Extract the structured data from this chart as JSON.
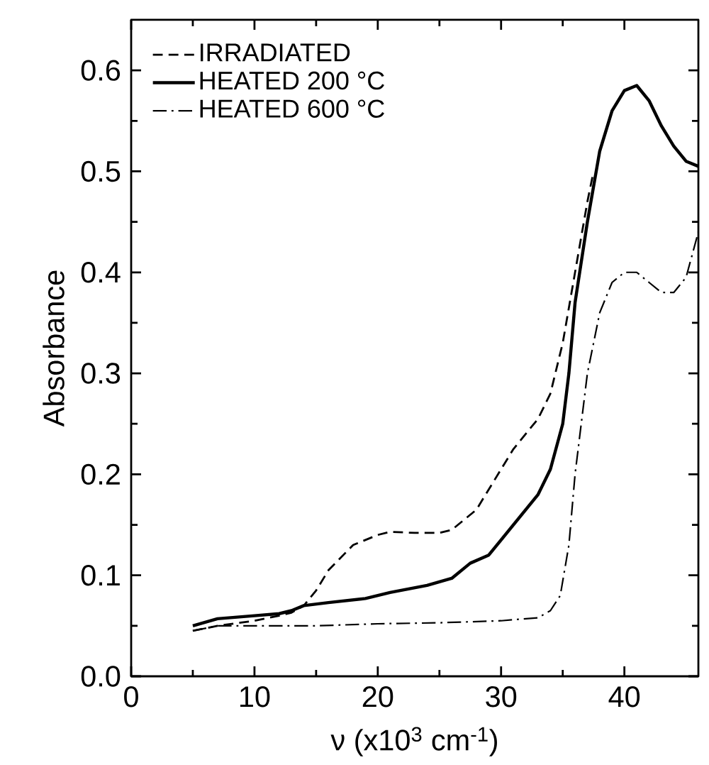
{
  "chart_data": {
    "type": "line",
    "xlabel": "ν (x10$^{3}$ cm$^{-1}$)",
    "ylabel": "Absorbance",
    "xlim": [
      0,
      46
    ],
    "ylim": [
      0,
      0.65
    ],
    "xticks": [
      0,
      10,
      20,
      30,
      40
    ],
    "yticks": [
      {
        "value": 0,
        "label": "0.0"
      },
      {
        "value": 0.1,
        "label": "0.1"
      },
      {
        "value": 0.2,
        "label": "0.2"
      },
      {
        "value": 0.3,
        "label": "0.3"
      },
      {
        "value": 0.4,
        "label": "0.4"
      },
      {
        "value": 0.5,
        "label": "0.5"
      },
      {
        "value": 0.6,
        "label": "0.6"
      }
    ],
    "grid": false,
    "legend": "top left",
    "marker": "none",
    "series": [
      {
        "name": "IRRADIATED",
        "color": "#000000",
        "line_style": "dashed",
        "x": [
          5,
          7,
          10,
          12,
          13,
          14,
          15,
          16,
          18,
          20,
          21,
          23,
          25,
          26,
          28,
          30,
          31,
          33,
          34,
          35,
          36,
          37,
          37.5
        ],
        "values": [
          0.045,
          0.05,
          0.055,
          0.06,
          0.063,
          0.07,
          0.085,
          0.105,
          0.13,
          0.14,
          0.143,
          0.142,
          0.142,
          0.145,
          0.165,
          0.205,
          0.225,
          0.255,
          0.28,
          0.33,
          0.4,
          0.47,
          0.5
        ]
      },
      {
        "name": "HEATED 200 °C",
        "color": "#000000",
        "line_style": "solid",
        "x": [
          5,
          7,
          10,
          12,
          13,
          14,
          16,
          19,
          21,
          24,
          26,
          27.5,
          29,
          31,
          33,
          34,
          35,
          35.5,
          36,
          37,
          38,
          39,
          40,
          41,
          42,
          43,
          44,
          45,
          46
        ],
        "values": [
          0.05,
          0.057,
          0.06,
          0.062,
          0.065,
          0.07,
          0.073,
          0.077,
          0.083,
          0.09,
          0.097,
          0.112,
          0.12,
          0.15,
          0.18,
          0.205,
          0.25,
          0.3,
          0.37,
          0.45,
          0.52,
          0.56,
          0.58,
          0.585,
          0.57,
          0.545,
          0.525,
          0.51,
          0.505
        ]
      },
      {
        "name": "HEATED 600 °C",
        "color": "#000000",
        "line_style": "dashdot",
        "x": [
          5,
          7,
          10,
          15,
          20,
          25,
          30,
          33,
          34,
          34.8,
          35.5,
          36,
          37,
          38,
          39,
          40,
          41,
          42,
          43,
          44,
          45,
          46
        ],
        "values": [
          0.045,
          0.05,
          0.05,
          0.05,
          0.052,
          0.053,
          0.055,
          0.058,
          0.065,
          0.08,
          0.13,
          0.2,
          0.3,
          0.36,
          0.39,
          0.4,
          0.4,
          0.39,
          0.38,
          0.38,
          0.395,
          0.44
        ]
      }
    ]
  }
}
